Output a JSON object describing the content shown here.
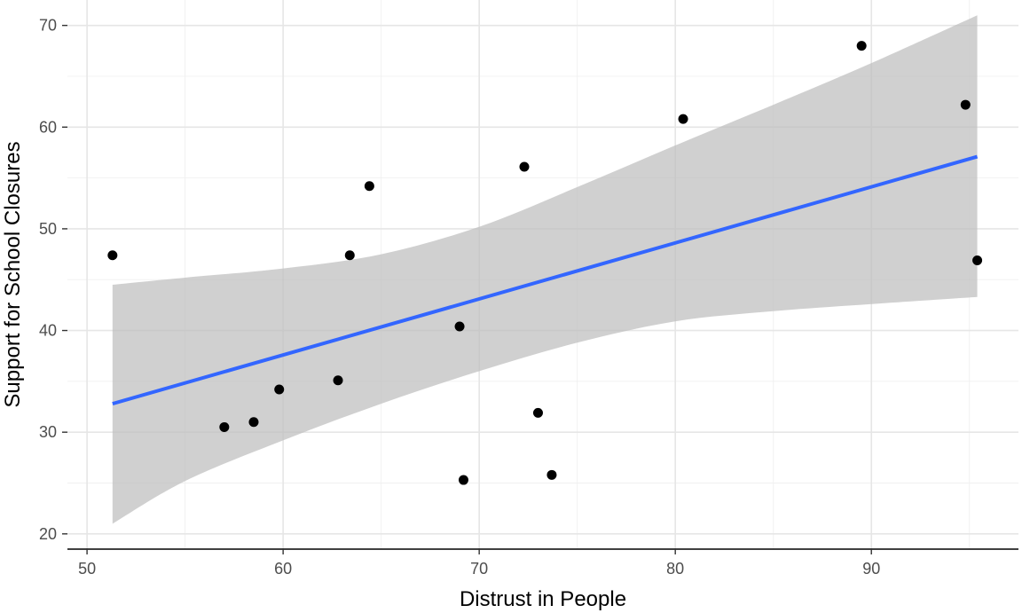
{
  "chart_data": {
    "type": "scatter",
    "xlabel": "Distrust in People",
    "ylabel": "Support for School Closures",
    "xlim": [
      49,
      97.5
    ],
    "ylim": [
      18.5,
      72.5
    ],
    "x_ticks": [
      50,
      60,
      70,
      80,
      90
    ],
    "y_ticks": [
      20,
      30,
      40,
      50,
      60,
      70
    ],
    "x_tick_labels": [
      "50",
      "60",
      "70",
      "80",
      "90"
    ],
    "y_tick_labels": [
      "20",
      "30",
      "40",
      "50",
      "60",
      "70"
    ],
    "grid": true,
    "points": [
      {
        "x": 51.3,
        "y": 47.4
      },
      {
        "x": 57.0,
        "y": 30.5
      },
      {
        "x": 58.5,
        "y": 31.0
      },
      {
        "x": 59.8,
        "y": 34.2
      },
      {
        "x": 62.8,
        "y": 35.1
      },
      {
        "x": 63.4,
        "y": 47.4
      },
      {
        "x": 64.4,
        "y": 54.2
      },
      {
        "x": 69.0,
        "y": 40.4
      },
      {
        "x": 69.2,
        "y": 25.3
      },
      {
        "x": 72.3,
        "y": 56.1
      },
      {
        "x": 73.0,
        "y": 31.9
      },
      {
        "x": 73.7,
        "y": 25.8
      },
      {
        "x": 80.4,
        "y": 60.8
      },
      {
        "x": 89.5,
        "y": 68.0
      },
      {
        "x": 94.8,
        "y": 62.2
      },
      {
        "x": 95.4,
        "y": 46.9
      }
    ],
    "trend_line": {
      "x": [
        51.3,
        95.4
      ],
      "y": [
        32.8,
        57.1
      ],
      "color": "#3366FF"
    },
    "confidence_band": {
      "x": [
        51.3,
        55,
        60,
        65,
        70,
        75,
        80,
        85,
        90,
        95.4
      ],
      "upper": [
        44.5,
        45.2,
        46.1,
        47.5,
        50.2,
        54.1,
        58.2,
        62.2,
        66.3,
        71.0
      ],
      "lower": [
        21.0,
        25.2,
        29.2,
        32.8,
        36.0,
        38.8,
        40.9,
        41.9,
        42.6,
        43.3
      ],
      "color": "#bebebe"
    },
    "point_color": "#000000"
  }
}
